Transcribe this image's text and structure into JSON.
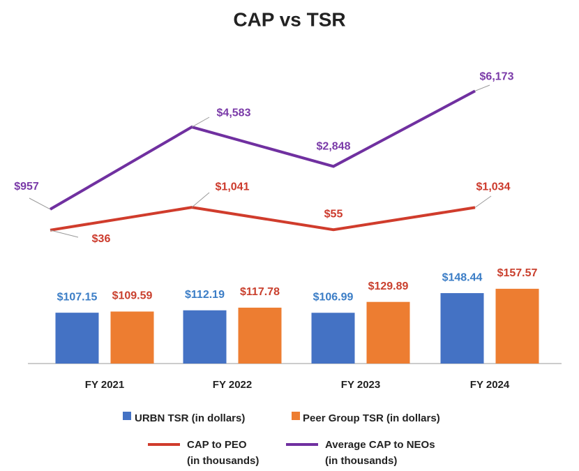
{
  "chart_data": {
    "type": "bar_line",
    "title": "CAP vs TSR",
    "categories": [
      "FY 2021",
      "FY 2022",
      "FY 2023",
      "FY 2024"
    ],
    "series": [
      {
        "name": "URBN TSR (in dollars)",
        "kind": "bar",
        "color": "#4472c4",
        "label_color": "#3b7dc6",
        "values": [
          107.15,
          112.19,
          106.99,
          148.44
        ],
        "value_labels": [
          "$107.15",
          "$112.19",
          "$106.99",
          "$148.44"
        ]
      },
      {
        "name": "Peer Group TSR (in dollars)",
        "kind": "bar",
        "color": "#ed7d31",
        "label_color": "#c9402e",
        "values": [
          109.59,
          117.78,
          129.89,
          157.57
        ],
        "value_labels": [
          "$109.59",
          "$117.78",
          "$129.89",
          "$157.57"
        ]
      },
      {
        "name": "CAP to PEO\n(in thousands)",
        "kind": "line",
        "color": "#d03c2c",
        "label_color": "#cc3a2c",
        "values": [
          36,
          1041,
          55,
          1034
        ],
        "value_labels": [
          "$36",
          "$1,041",
          "$55",
          "$1,034"
        ]
      },
      {
        "name": "Average CAP to NEOs\n(in thousands)",
        "kind": "line",
        "color": "#7030a0",
        "label_color": "#7a3aa8",
        "values": [
          957,
          4583,
          2848,
          6173
        ],
        "value_labels": [
          "$957",
          "$4,583",
          "$2,848",
          "$6,173"
        ]
      }
    ]
  }
}
